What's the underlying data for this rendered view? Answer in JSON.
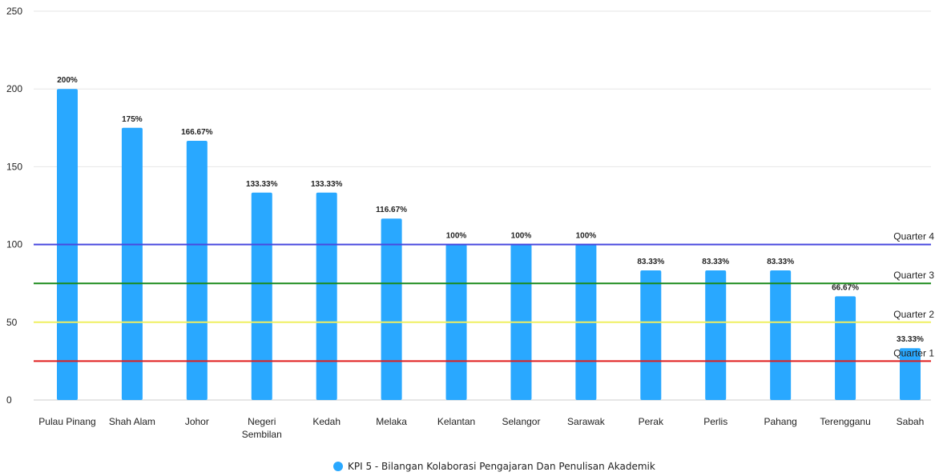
{
  "chart_data": {
    "type": "bar",
    "title": "",
    "xlabel": "",
    "ylabel": "",
    "ylim": [
      0,
      250
    ],
    "yticks": [
      0,
      50,
      100,
      150,
      200,
      250
    ],
    "grid": true,
    "legend_position": "bottom",
    "categories": [
      [
        "Pulau Pinang"
      ],
      [
        "Shah Alam"
      ],
      [
        "Johor"
      ],
      [
        "Negeri",
        "Sembilan"
      ],
      [
        "Kedah"
      ],
      [
        "Melaka"
      ],
      [
        "Kelantan"
      ],
      [
        "Selangor"
      ],
      [
        "Sarawak"
      ],
      [
        "Perak"
      ],
      [
        "Perlis"
      ],
      [
        "Pahang"
      ],
      [
        "Terengganu"
      ],
      [
        "Sabah"
      ]
    ],
    "series": [
      {
        "name": "KPI 5 - Bilangan Kolaborasi Pengajaran Dan Penulisan Akademik",
        "color": "#29a8ff",
        "values": [
          200,
          175,
          166.67,
          133.33,
          133.33,
          116.67,
          100,
          100,
          100,
          83.33,
          83.33,
          83.33,
          66.67,
          33.33
        ],
        "labels": [
          "200%",
          "175%",
          "166.67%",
          "133.33%",
          "133.33%",
          "116.67%",
          "100%",
          "100%",
          "100%",
          "83.33%",
          "83.33%",
          "83.33%",
          "66.67%",
          "33.33%"
        ]
      }
    ],
    "reference_lines": [
      {
        "name": "Quarter 4",
        "value": 100,
        "color": "#4a4adf"
      },
      {
        "name": "Quarter 3",
        "value": 75,
        "color": "#1a8a1a"
      },
      {
        "name": "Quarter 2",
        "value": 50,
        "color": "#f0f060"
      },
      {
        "name": "Quarter 1",
        "value": 25,
        "color": "#e01b1b"
      }
    ]
  }
}
